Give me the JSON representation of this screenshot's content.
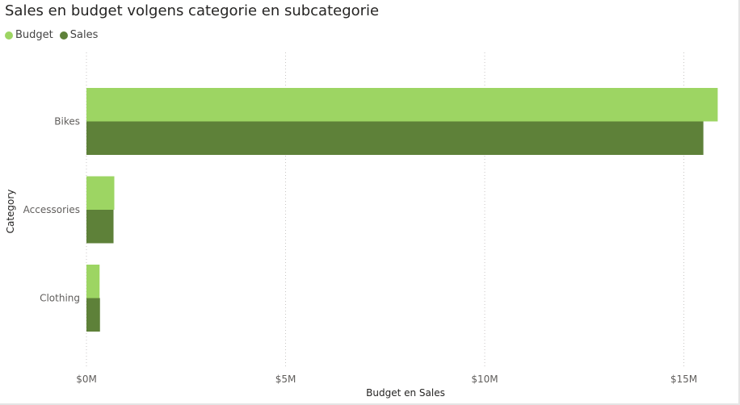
{
  "chart_data": {
    "type": "bar",
    "orientation": "horizontal",
    "title": "Sales en budget volgens categorie en subcategorie",
    "xlabel": "Budget en Sales",
    "ylabel": "Category",
    "categories": [
      "Bikes",
      "Accessories",
      "Clothing"
    ],
    "series": [
      {
        "name": "Budget",
        "color": "#9dd563",
        "values": [
          15.85,
          0.7,
          0.33
        ]
      },
      {
        "name": "Sales",
        "color": "#5e8139",
        "values": [
          15.49,
          0.68,
          0.34
        ]
      }
    ],
    "xlim": [
      0,
      16
    ],
    "x_unit": "$M",
    "x_ticks": [
      {
        "value": 0,
        "label": "$0M"
      },
      {
        "value": 5,
        "label": "$5M"
      },
      {
        "value": 10,
        "label": "$10M"
      },
      {
        "value": 15,
        "label": "$15M"
      }
    ],
    "grid": "vertical-dotted",
    "legend_position": "top-left"
  }
}
